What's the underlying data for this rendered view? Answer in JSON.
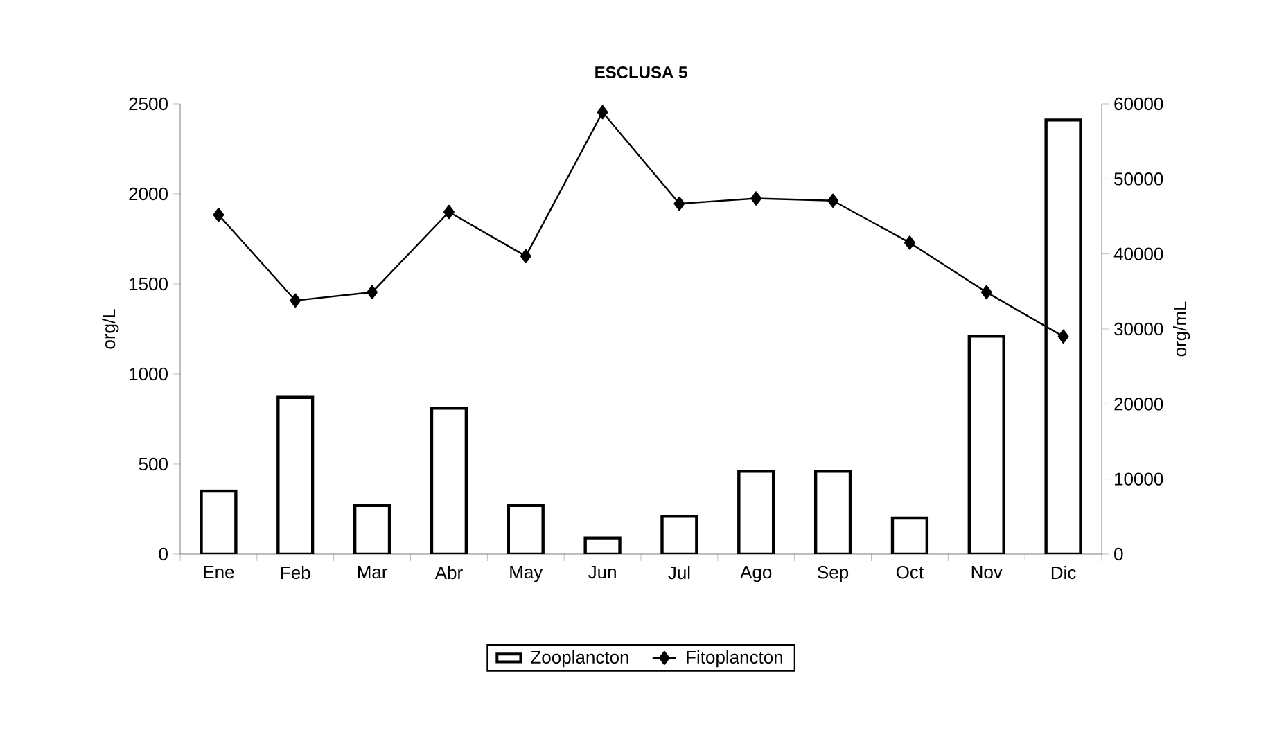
{
  "chart_data": {
    "type": "bar",
    "title": "ESCLUSA 5",
    "ylabel": "org/L",
    "y2label": "org/mL",
    "categories": [
      "Ene",
      "Feb",
      "Mar",
      "Abr",
      "May",
      "Jun",
      "Jul",
      "Ago",
      "Sep",
      "Oct",
      "Nov",
      "Dic"
    ],
    "series": [
      {
        "name": "Zooplancton",
        "color": "#000000",
        "values": [
          350,
          870,
          270,
          810,
          270,
          90,
          210,
          460,
          460,
          200,
          1210,
          2410
        ]
      },
      {
        "name": "Fitoplancton",
        "type": "line",
        "axis": "y2",
        "color": "#000000",
        "marker": "diamond",
        "values": [
          45200,
          33800,
          34900,
          45600,
          39700,
          58900,
          46700,
          47400,
          47100,
          41500,
          34900,
          29000
        ]
      }
    ],
    "ylim": [
      0,
      2500
    ],
    "yticks": [
      0,
      500,
      1000,
      1500,
      2000,
      2500
    ],
    "y2lim": [
      0,
      60000
    ],
    "y2ticks": [
      0,
      10000,
      20000,
      30000,
      40000,
      50000,
      60000
    ],
    "legend": "bottom",
    "grid": false
  }
}
